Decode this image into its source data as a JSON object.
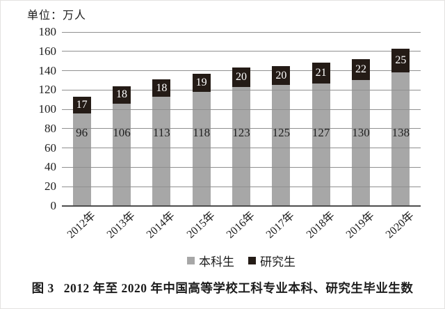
{
  "unit_label": "单位：万人",
  "chart_data": {
    "type": "bar",
    "stacked": true,
    "title": "",
    "xlabel": "",
    "ylabel": "单位：万人",
    "categories": [
      "2012年",
      "2013年",
      "2014年",
      "2015年",
      "2016年",
      "2017年",
      "2018年",
      "2019年",
      "2020年"
    ],
    "series": [
      {
        "name": "本科生",
        "color": "#a7a7a7",
        "label_color": "#1f1f1f",
        "values": [
          96,
          106,
          113,
          118,
          123,
          125,
          127,
          130,
          138
        ]
      },
      {
        "name": "研究生",
        "color": "#241b16",
        "label_color": "#ffffff",
        "values": [
          17,
          18,
          18,
          19,
          20,
          20,
          21,
          22,
          25
        ]
      }
    ],
    "stack_totals": [
      113,
      124,
      131,
      137,
      143,
      145,
      148,
      152,
      163
    ],
    "ylim": [
      0,
      180
    ],
    "ytick_step": 20,
    "yticks": [
      0,
      20,
      40,
      60,
      80,
      100,
      120,
      140,
      160,
      180
    ],
    "grid": true,
    "gridline_color": "#8f8f8f",
    "axis_line_color": "#4c4c4c",
    "legend_position": "bottom",
    "legend": [
      "本科生",
      "研究生"
    ]
  },
  "caption": {
    "prefix": "图 3",
    "text": "2012 年至 2020 年中国高等学校工科专业本科、研究生毕业生数"
  }
}
